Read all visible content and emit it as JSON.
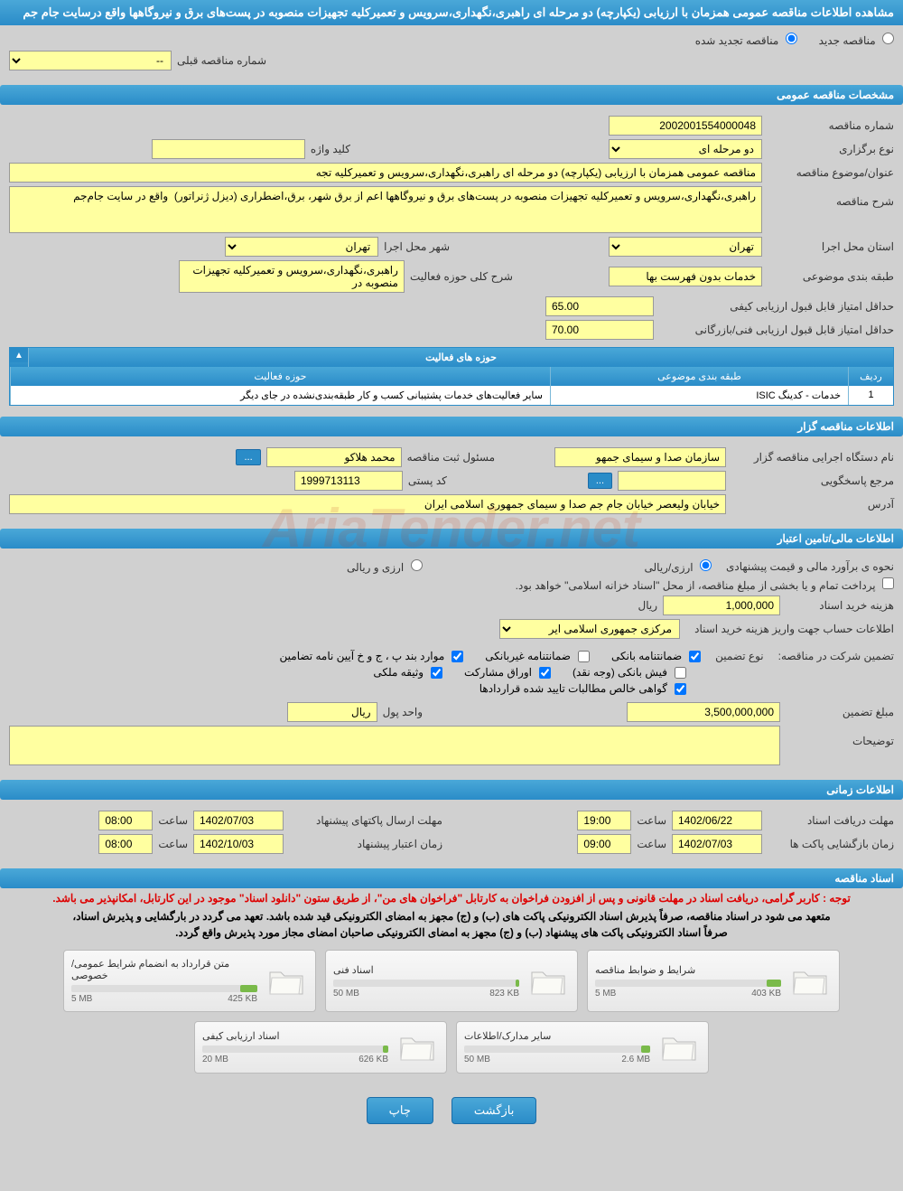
{
  "page_title": "مشاهده اطلاعات مناقصه عمومی همزمان با ارزیابی (یکپارچه) دو مرحله ای راهبری،نگهداری،سرویس و تعمیرکلیه تجهیزات منصوبه در پست‌های برق و نیروگاهها واقع درسایت جام جم",
  "status": {
    "new_label": "مناقصه جدید",
    "renewed_label": "مناقصه تجدید شده",
    "prev_number_label": "شماره مناقصه قبلی",
    "prev_number": "--"
  },
  "sections": {
    "general": "مشخصات مناقصه عمومی",
    "activities": "حوزه های فعالیت",
    "bidder": "اطلاعات مناقصه گزار",
    "financial": "اطلاعات مالی/تامین اعتبار",
    "timing": "اطلاعات زمانی",
    "docs": "اسناد مناقصه"
  },
  "general": {
    "number_label": "شماره مناقصه",
    "number": "2002001554000048",
    "type_label": "نوع برگزاری",
    "type": "دو مرحله ای",
    "keyword_label": "کلید واژه",
    "keyword": "",
    "subject_label": "عنوان/موضوع مناقصه",
    "subject": "مناقصه عمومی همزمان با ارزیابی (یکپارچه) دو مرحله ای  راهبری،نگهداری،سرویس و تعمیرکلیه تجه",
    "desc_label": "شرح مناقصه",
    "desc": "راهبری،نگهداری،سرویس و تعمیرکلیه تجهیزات منصوبه در پست‌های برق و نیروگاهها اعم از برق شهر، برق،اضطراری (دیزل ژنراتور)  واقع در سایت جام‌جم",
    "province_label": "استان محل اجرا",
    "province": "تهران",
    "city_label": "شهر محل اجرا",
    "city": "تهران",
    "category_label": "طبقه بندی موضوعی",
    "category": "خدمات بدون فهرست بها",
    "activity_desc_label": "شرح کلی حوزه فعالیت",
    "activity_desc": "راهبری،نگهداری،سرویس و تعمیرکلیه تجهیزات منصوبه در",
    "min_qual_label": "حداقل امتیاز قابل قبول ارزیابی کیفی",
    "min_qual": "65.00",
    "min_tech_label": "حداقل امتیاز قابل قبول ارزیابی فنی/بازرگانی",
    "min_tech": "70.00"
  },
  "activities": {
    "cols": [
      "ردیف",
      "طبقه بندی موضوعی",
      "حوزه فعالیت"
    ],
    "widths": [
      "50px",
      "330px",
      "auto"
    ],
    "rows": [
      [
        "1",
        "خدمات - کدینگ ISIC",
        "سایر فعالیت‌های خدمات پشتیبانی کسب و کار طبقه‌بندی‌نشده در جای دیگر"
      ]
    ]
  },
  "bidder": {
    "agency_label": "نام دستگاه اجرایی مناقصه گزار",
    "agency": "سازمان صدا و سیمای جمهو",
    "officer_label": "مسئول ثبت مناقصه",
    "officer": "محمد هلاکو",
    "contact_label": "مرجع پاسخگویی",
    "contact": "",
    "postal_label": "کد پستی",
    "postal": "1999713113",
    "address_label": "آدرس",
    "address": "خیابان ولیعصر خیابان جام جم صدا و سیمای جمهوری اسلامی ایران",
    "more_btn": "..."
  },
  "financial": {
    "method_label": "نحوه ی برآورد مالی و قیمت پیشنهادی",
    "opt_fx_rial": "ارزی/ریالی",
    "opt_fx": "ارزی و ریالی",
    "payment_note": "پرداخت تمام و یا بخشی از مبلغ مناقصه، از محل \"اسناد خزانه اسلامی\" خواهد بود.",
    "doc_cost_label": "هزینه خرید اسناد",
    "doc_cost": "1,000,000",
    "currency_rial": "ریال",
    "account_label": "اطلاعات حساب جهت واریز هزینه خرید اسناد",
    "account": "مرکزی جمهوری اسلامی ایر",
    "guarantee_label": "تضمین شرکت در مناقصه:",
    "guarantee_type_label": "نوع تضمین",
    "chk_bank": "ضمانتنامه بانکی",
    "chk_nonbank": "ضمانتنامه غیربانکی",
    "chk_bond": "موارد بند پ ، ج و خ آیین نامه تضامین",
    "chk_cash": "فیش بانکی (وجه نقد)",
    "chk_securities": "اوراق مشارکت",
    "chk_property": "وثیقه ملکی",
    "chk_receivables": "گواهی خالص مطالبات تایید شده قراردادها",
    "amount_label": "مبلغ تضمین",
    "amount": "3,500,000,000",
    "unit_label": "واحد پول",
    "unit": "ریال",
    "notes_label": "توضیحات"
  },
  "timing": {
    "receive_label": "مهلت دریافت اسناد",
    "receive_date": "1402/06/22",
    "receive_time_label": "ساعت",
    "receive_time": "19:00",
    "send_label": "مهلت ارسال پاکتهای پیشنهاد",
    "send_date": "1402/07/03",
    "send_time_label": "ساعت",
    "send_time": "08:00",
    "open_label": "زمان بازگشایی پاکت ها",
    "open_date": "1402/07/03",
    "open_time_label": "ساعت",
    "open_time": "09:00",
    "valid_label": "زمان اعتبار پیشنهاد",
    "valid_date": "1402/10/03",
    "valid_time_label": "ساعت",
    "valid_time": "08:00"
  },
  "docs": {
    "note1": "توجه : کاربر گرامی، دریافت اسناد در مهلت قانونی و پس از افزودن فراخوان به کارتابل \"فراخوان های من\"، از طریق ستون \"دانلود اسناد\" موجود در این کارتابل، امکانپذیر می باشد.",
    "note2": "متعهد می شود در اسناد مناقصه، صرفاً پذیرش اسناد الکترونیکی پاکت های (ب) و (ج) مجهز به امضای الکترونیکی قید شده باشد. تعهد می گردد در بارگشایی و پذیرش اسناد،",
    "note3": "صرفاً اسناد الکترونیکی پاکت های پیشنهاد (ب) و (ج) مجهز به امضای الکترونیکی صاحبان امضای مجاز مورد پذیرش واقع گردد.",
    "files": [
      {
        "title": "شرایط و ضوابط مناقصه",
        "size": "403 KB",
        "limit": "5 MB",
        "pct": 8
      },
      {
        "title": "اسناد فنی",
        "size": "823 KB",
        "limit": "50 MB",
        "pct": 2
      },
      {
        "title": "متن قرارداد به انضمام شرایط عمومی/خصوصی",
        "size": "425 KB",
        "limit": "5 MB",
        "pct": 9
      },
      {
        "title": "سایر مدارک/اطلاعات",
        "size": "2.6 MB",
        "limit": "50 MB",
        "pct": 5
      },
      {
        "title": "اسناد ارزیابی کیفی",
        "size": "626 KB",
        "limit": "20 MB",
        "pct": 3
      }
    ]
  },
  "buttons": {
    "back": "بازگشت",
    "print": "چاپ"
  },
  "watermark": "AriaTender.net"
}
